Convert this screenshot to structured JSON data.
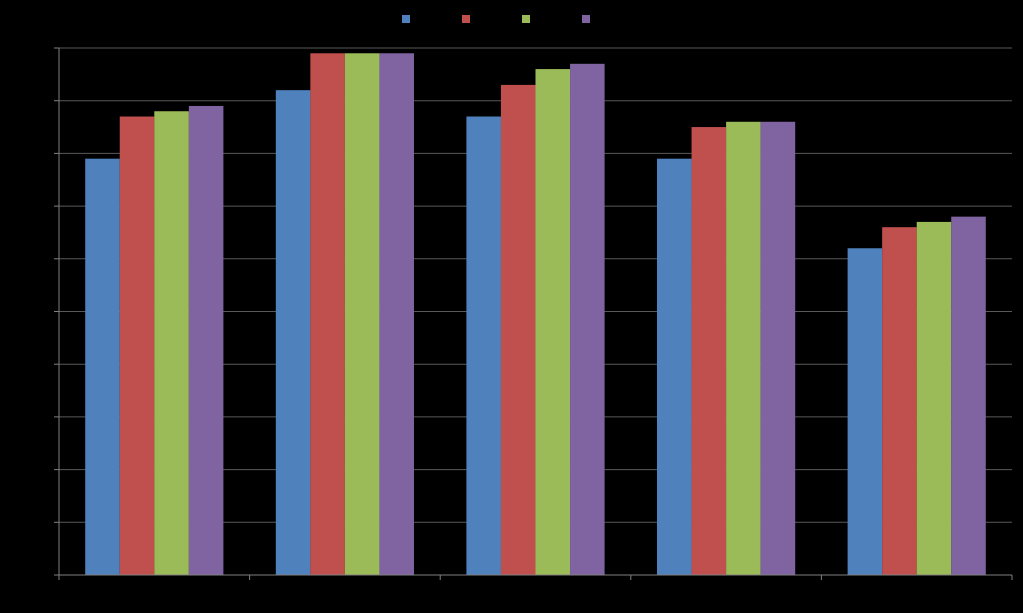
{
  "chart_data": {
    "type": "bar",
    "categories": [
      "",
      "",
      "",
      "",
      ""
    ],
    "series": [
      {
        "color": "#4f81bd",
        "values": [
          79,
          92,
          87,
          79,
          62
        ]
      },
      {
        "color": "#c0504d",
        "values": [
          87,
          99,
          93,
          85,
          66
        ]
      },
      {
        "color": "#9bbb59",
        "values": [
          88,
          99,
          96,
          86,
          67
        ]
      },
      {
        "color": "#8064a2",
        "values": [
          89,
          99,
          97,
          86,
          68
        ]
      }
    ],
    "ylim": [
      0,
      100
    ],
    "ytick_step": 10,
    "grid": true,
    "legend": "top-center",
    "background": "#000000",
    "gridline_color": "#595959",
    "axis_color": "#808080"
  }
}
